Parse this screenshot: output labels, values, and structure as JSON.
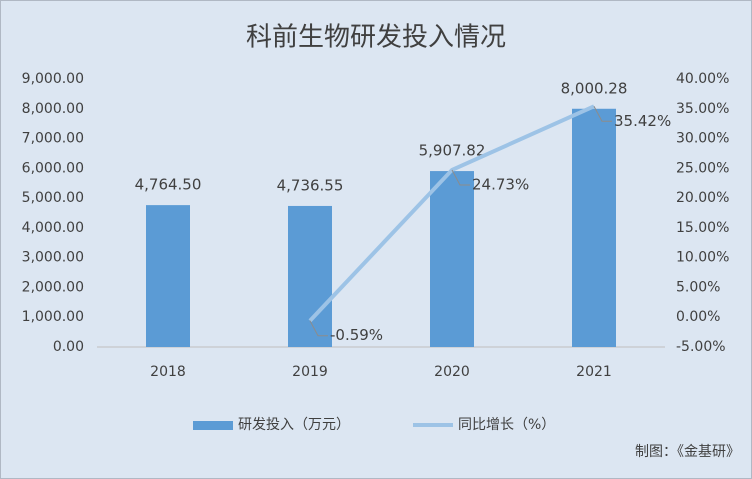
{
  "chart_data": {
    "type": "combo",
    "title": "科前生物研发投入情况",
    "categories": [
      "2018",
      "2019",
      "2020",
      "2021"
    ],
    "series": [
      {
        "name": "研发投入（万元）",
        "type": "bar",
        "color": "#5b9bd5",
        "values": [
          4764.5,
          4736.55,
          5907.82,
          8000.28
        ],
        "value_labels": [
          "4,764.50",
          "4,736.55",
          "5,907.82",
          "8,000.28"
        ]
      },
      {
        "name": "同比增长（%）",
        "type": "line",
        "axis": "y2",
        "color": "#9dc3e6",
        "values": [
          null,
          -0.59,
          24.73,
          35.42
        ],
        "value_labels": [
          null,
          "-0.59%",
          "24.73%",
          "35.42%"
        ]
      }
    ],
    "ylim": [
      0,
      9000
    ],
    "yticks": [
      {
        "value": 0,
        "label": "0.00"
      },
      {
        "value": 1000,
        "label": "1,000.00"
      },
      {
        "value": 2000,
        "label": "2,000.00"
      },
      {
        "value": 3000,
        "label": "3,000.00"
      },
      {
        "value": 4000,
        "label": "4,000.00"
      },
      {
        "value": 5000,
        "label": "5,000.00"
      },
      {
        "value": 6000,
        "label": "6,000.00"
      },
      {
        "value": 7000,
        "label": "7,000.00"
      },
      {
        "value": 8000,
        "label": "8,000.00"
      },
      {
        "value": 9000,
        "label": "9,000.00"
      }
    ],
    "y2lim": [
      -5,
      40
    ],
    "y2ticks": [
      {
        "value": -5,
        "label": "-5.00%"
      },
      {
        "value": 0,
        "label": "0.00%"
      },
      {
        "value": 5,
        "label": "5.00%"
      },
      {
        "value": 10,
        "label": "10.00%"
      },
      {
        "value": 15,
        "label": "15.00%"
      },
      {
        "value": 20,
        "label": "20.00%"
      },
      {
        "value": 25,
        "label": "25.00%"
      },
      {
        "value": 30,
        "label": "30.00%"
      },
      {
        "value": 35,
        "label": "35.00%"
      },
      {
        "value": 40,
        "label": "40.00%"
      }
    ],
    "legend": "bottom",
    "source": "制图：《金基研》"
  }
}
